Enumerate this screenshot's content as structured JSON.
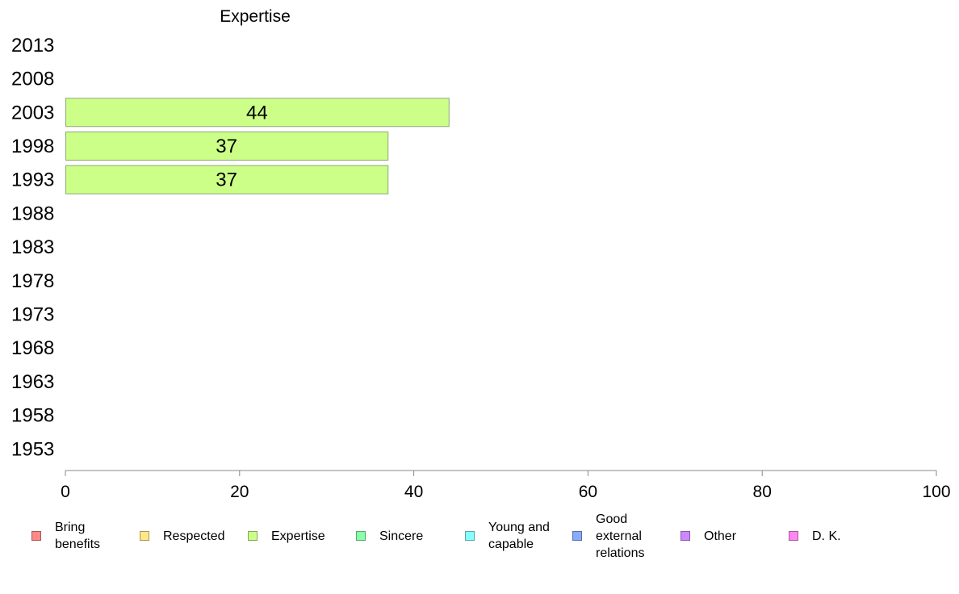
{
  "chart_data": {
    "type": "bar",
    "orientation": "horizontal",
    "title": "Expertise",
    "categories": [
      "2013",
      "2008",
      "2003",
      "1998",
      "1993",
      "1988",
      "1983",
      "1978",
      "1973",
      "1968",
      "1963",
      "1958",
      "1953"
    ],
    "values": [
      null,
      null,
      44,
      37,
      37,
      null,
      null,
      null,
      null,
      null,
      null,
      null,
      null
    ],
    "data_labels": [
      "",
      "",
      "44",
      "37",
      "37",
      "",
      "",
      "",
      "",
      "",
      "",
      "",
      ""
    ],
    "bar_color": "#ccff88",
    "xlim": [
      0,
      100
    ],
    "xticks": [
      0,
      20,
      40,
      60,
      80,
      100
    ],
    "xtick_labels": [
      "0",
      "20",
      "40",
      "60",
      "80",
      "100"
    ],
    "grid": false,
    "legend_position": "bottom",
    "legend": [
      {
        "label": "Bring\nbenefits",
        "color": "#ff8888"
      },
      {
        "label": "Respected",
        "color": "#ffe888"
      },
      {
        "label": "Expertise",
        "color": "#ccff88"
      },
      {
        "label": "Sincere",
        "color": "#88ffaa"
      },
      {
        "label": "Young and\ncapable",
        "color": "#88ffff"
      },
      {
        "label": "Good\nexternal\nrelations",
        "color": "#88aaff"
      },
      {
        "label": "Other",
        "color": "#cc88ff"
      },
      {
        "label": "D. K.",
        "color": "#ff88ee"
      }
    ]
  }
}
